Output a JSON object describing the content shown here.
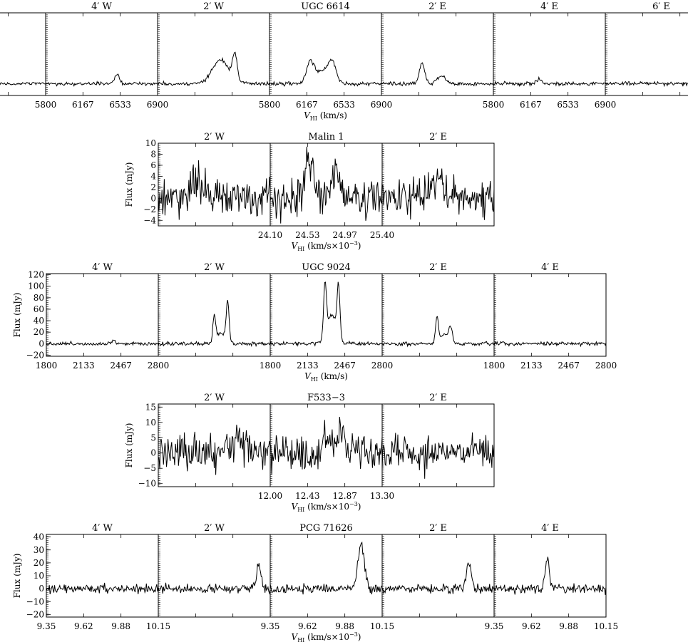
{
  "chart_data": [
    {
      "type": "line",
      "xlabel_main": "V",
      "xlabel_sub": "HI",
      "xlabel_units": " (km/s)",
      "panels": [
        {
          "title": "",
          "xlim": [
            6900,
            5800
          ],
          "ylim": [
            -20,
            120
          ]
        },
        {
          "title": "4′ W",
          "xlim": [
            5800,
            6900
          ],
          "ylim": [
            -20,
            120
          ],
          "xticks": [
            "5800",
            "6167",
            "6533",
            "6900"
          ],
          "peaks": [
            {
              "x": 6500,
              "height": 16,
              "width": 70
            }
          ]
        },
        {
          "title": "2′ W",
          "xlim": [
            5800,
            6900
          ],
          "ylim": [
            -20,
            120
          ],
          "peaks": [
            {
              "x": 6420,
              "height": 40,
              "width": 250
            },
            {
              "x": 6560,
              "height": 45,
              "width": 70
            }
          ]
        },
        {
          "title": "UGC 6614",
          "xlim": [
            5800,
            6900
          ],
          "ylim": [
            -20,
            120
          ],
          "xticks": [
            "5800",
            "6167",
            "6533",
            "6900"
          ],
          "peaks": [
            {
              "x": 6200,
              "height": 35,
              "width": 120
            },
            {
              "x": 6420,
              "height": 32,
              "width": 120
            },
            {
              "x": 6320,
              "height": 22,
              "width": 200
            }
          ]
        },
        {
          "title": "2′ E",
          "xlim": [
            5800,
            6900
          ],
          "ylim": [
            -20,
            120
          ],
          "peaks": [
            {
              "x": 6200,
              "height": 36,
              "width": 80
            },
            {
              "x": 6390,
              "height": 14,
              "width": 120
            }
          ]
        },
        {
          "title": "4′ E",
          "xlim": [
            5800,
            6900
          ],
          "ylim": [
            -20,
            120
          ],
          "xticks": [
            "5800",
            "6167",
            "6533",
            "6900"
          ],
          "peaks": [
            {
              "x": 6250,
              "height": 8,
              "width": 80
            }
          ]
        },
        {
          "title": "6′ E",
          "xlim": [
            5800,
            6900
          ],
          "ylim": [
            -20,
            120
          ]
        }
      ]
    },
    {
      "type": "line",
      "ylabel": "Flux (mJy)",
      "yticks": [
        "10",
        "8",
        "6",
        "4",
        "2",
        "0",
        "−2",
        "−4"
      ],
      "ylim": [
        -5,
        10
      ],
      "xlabel_main": "V",
      "xlabel_sub": "HI",
      "xlabel_units": " (km/s×10",
      "xlabel_exp": "−3",
      "xlabel_close": ")",
      "panels": [
        {
          "title": "2′ W",
          "xlim": [
            24.1,
            25.4
          ],
          "peaks": [
            {
              "x": 24.55,
              "height": 3.0,
              "width": 0.25
            }
          ]
        },
        {
          "title": "Malin 1",
          "xlim": [
            24.1,
            25.4
          ],
          "xticks": [
            "24.10",
            "24.53",
            "24.97",
            "25.40"
          ],
          "peaks": [
            {
              "x": 24.55,
              "height": 5.5,
              "width": 0.18
            },
            {
              "x": 24.85,
              "height": 5.5,
              "width": 0.16
            }
          ]
        },
        {
          "title": "2′ E",
          "xlim": [
            24.1,
            25.4
          ],
          "peaks": [
            {
              "x": 24.75,
              "height": 2.5,
              "width": 0.3
            }
          ]
        }
      ]
    },
    {
      "type": "line",
      "ylabel": "Flux (mJy)",
      "yticks": [
        "120",
        "100",
        "80",
        "60",
        "40",
        "20",
        "0",
        "−20"
      ],
      "ylim": [
        -22,
        122
      ],
      "xlabel_main": "V",
      "xlabel_sub": "HI",
      "xlabel_units": " (km/s)",
      "panels": [
        {
          "title": "4′ W",
          "xlim": [
            1800,
            2800
          ],
          "xticks": [
            "1800",
            "2133",
            "2467",
            "2800"
          ],
          "peaks": [
            {
              "x": 2400,
              "height": 6,
              "width": 60
            }
          ]
        },
        {
          "title": "2′ W",
          "xlim": [
            1800,
            2800
          ],
          "peaks": [
            {
              "x": 2300,
              "height": 45,
              "width": 40
            },
            {
              "x": 2420,
              "height": 72,
              "width": 40
            },
            {
              "x": 2360,
              "height": 18,
              "width": 110
            }
          ]
        },
        {
          "title": "UGC 9024",
          "xlim": [
            1800,
            2800
          ],
          "xticks": [
            "1800",
            "2133",
            "2467",
            "2800"
          ],
          "peaks": [
            {
              "x": 2290,
              "height": 95,
              "width": 40
            },
            {
              "x": 2410,
              "height": 92,
              "width": 40
            },
            {
              "x": 2350,
              "height": 50,
              "width": 120
            }
          ]
        },
        {
          "title": "2′ E",
          "xlim": [
            1800,
            2800
          ],
          "peaks": [
            {
              "x": 2290,
              "height": 45,
              "width": 40
            },
            {
              "x": 2410,
              "height": 28,
              "width": 50
            },
            {
              "x": 2350,
              "height": 15,
              "width": 110
            }
          ]
        },
        {
          "title": "4′ E",
          "xlim": [
            1800,
            2800
          ],
          "xticks": [
            "1800",
            "2133",
            "2467",
            "2800"
          ]
        }
      ]
    },
    {
      "type": "line",
      "ylabel": "Flux (mJy)",
      "yticks": [
        "15",
        "10",
        "5",
        "0",
        "−5",
        "−10"
      ],
      "ylim": [
        -11,
        16
      ],
      "xlabel_main": "V",
      "xlabel_sub": "HI",
      "xlabel_units": " (km/s×10",
      "xlabel_exp": "−3",
      "xlabel_close": ")",
      "panels": [
        {
          "title": "2′ W",
          "xlim": [
            12.0,
            13.3
          ],
          "peaks": [
            {
              "x": 12.95,
              "height": 4.0,
              "width": 0.3
            }
          ]
        },
        {
          "title": "F533−3",
          "xlim": [
            12.0,
            13.3
          ],
          "xticks": [
            "12.00",
            "12.43",
            "12.87",
            "13.30"
          ],
          "peaks": [
            {
              "x": 12.7,
              "height": 5.5,
              "width": 0.35
            },
            {
              "x": 12.84,
              "height": 8,
              "width": 0.05
            }
          ]
        },
        {
          "title": "2′ E",
          "xlim": [
            12.0,
            13.3
          ]
        }
      ]
    },
    {
      "type": "line",
      "ylabel": "Flux (mJy)",
      "yticks": [
        "40",
        "30",
        "20",
        "10",
        "0",
        "−10",
        "−20"
      ],
      "ylim": [
        -22,
        42
      ],
      "xlabel_main": "V",
      "xlabel_sub": "HI",
      "xlabel_units": " (km/s×10",
      "xlabel_exp": "−3",
      "xlabel_close": ")",
      "panels": [
        {
          "title": "4′ W",
          "xlim": [
            9.35,
            10.15
          ],
          "xticks": [
            "9.35",
            "9.62",
            "9.88",
            "10.15"
          ]
        },
        {
          "title": "2′ W",
          "xlim": [
            9.35,
            10.15
          ],
          "peaks": [
            {
              "x": 10.07,
              "height": 20,
              "width": 0.05
            }
          ]
        },
        {
          "title": "PCG 71626",
          "xlim": [
            9.35,
            10.15
          ],
          "xticks": [
            "9.35",
            "9.62",
            "9.88",
            "10.15"
          ],
          "peaks": [
            {
              "x": 10.0,
              "height": 34,
              "width": 0.07
            }
          ]
        },
        {
          "title": "2′ E",
          "xlim": [
            9.35,
            10.15
          ],
          "peaks": [
            {
              "x": 9.97,
              "height": 22,
              "width": 0.05
            }
          ]
        },
        {
          "title": "4′ E",
          "xlim": [
            9.35,
            10.15
          ],
          "xticks": [
            "9.35",
            "9.62",
            "9.88",
            "10.15"
          ],
          "peaks": [
            {
              "x": 9.73,
              "height": 24,
              "width": 0.04
            }
          ]
        }
      ]
    }
  ],
  "colors": {
    "line": "#000000",
    "background": "#ffffff"
  }
}
